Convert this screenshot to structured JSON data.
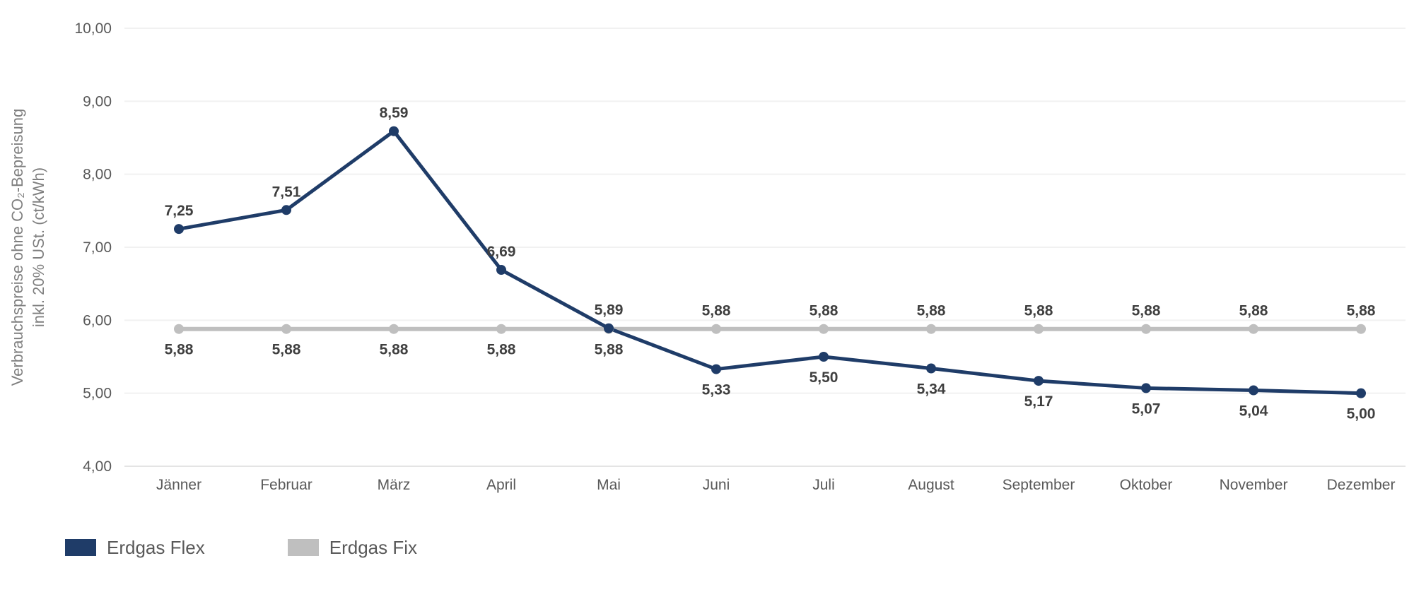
{
  "chart_data": {
    "type": "line",
    "title": "",
    "xlabel": "",
    "ylabel": "Verbrauchspreise ohne CO₂-Bepreisung inkl. 20% USt. (ct/kWh)",
    "ylabel_line1": "Verbrauchspreise ohne CO₂-Bepreisung",
    "ylabel_line2": "inkl. 20% USt. (ct/kWh)",
    "ylim": [
      4,
      10
    ],
    "y_ticks": [
      10,
      9,
      8,
      7,
      6,
      5,
      4
    ],
    "y_tick_labels": [
      "10,00",
      "9,00",
      "8,00",
      "7,00",
      "6,00",
      "5,00",
      "4,00"
    ],
    "grid": true,
    "legend_position": "bottom-left",
    "categories": [
      "Jänner",
      "Februar",
      "März",
      "April",
      "Mai",
      "Juni",
      "Juli",
      "August",
      "September",
      "Oktober",
      "November",
      "Dezember"
    ],
    "series": [
      {
        "name": "Erdgas Flex",
        "color": "#1f3c68",
        "values": [
          7.25,
          7.51,
          8.59,
          6.69,
          5.89,
          5.33,
          5.5,
          5.34,
          5.17,
          5.07,
          5.04,
          5.0
        ],
        "labels": [
          "7,25",
          "7,51",
          "8,59",
          "6,69",
          "5,89",
          "5,33",
          "5,50",
          "5,34",
          "5,17",
          "5,07",
          "5,04",
          "5,00"
        ],
        "label_side": [
          "above",
          "above",
          "above",
          "above",
          "above",
          "below",
          "below",
          "below",
          "below",
          "below",
          "below",
          "below"
        ]
      },
      {
        "name": "Erdgas Fix",
        "color": "#bfbfbf",
        "values": [
          5.88,
          5.88,
          5.88,
          5.88,
          5.88,
          5.88,
          5.88,
          5.88,
          5.88,
          5.88,
          5.88,
          5.88
        ],
        "labels": [
          "5,88",
          "5,88",
          "5,88",
          "5,88",
          "5,88",
          "5,88",
          "5,88",
          "5,88",
          "5,88",
          "5,88",
          "5,88",
          "5,88"
        ],
        "label_side": [
          "below",
          "below",
          "below",
          "below",
          "below",
          "above",
          "above",
          "above",
          "above",
          "above",
          "above",
          "above"
        ]
      }
    ],
    "styles": {
      "gridline_color": "#f1f1f1",
      "baseline_color": "#e4e4e4",
      "tick_label_color": "#595959",
      "data_label_color": "#3f3f3f",
      "axis_title_color": "#7f7f7f"
    }
  }
}
